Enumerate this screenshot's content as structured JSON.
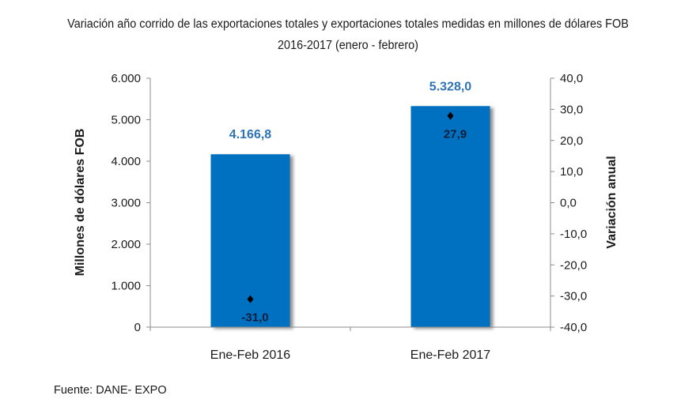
{
  "chart_data": {
    "type": "bar",
    "title": "Variación año corrido de las exportaciones totales y exportaciones totales medidas en millones de dólares FOB",
    "subtitle": "2016-2017 (enero - febrero)",
    "categories": [
      "Ene-Feb 2016",
      "Ene-Feb 2017"
    ],
    "series": [
      {
        "name": "Exportaciones totales (millones de dólares FOB)",
        "type": "bar",
        "axis": "left",
        "values": [
          4166.8,
          5328.0
        ],
        "labels": [
          "4.166,8",
          "5.328,0"
        ],
        "color": "#0070c0"
      },
      {
        "name": "Variación anual",
        "type": "scatter",
        "axis": "right",
        "values": [
          -31.0,
          27.9
        ],
        "labels": [
          "-31,0",
          "27,9"
        ],
        "color": "#000000"
      }
    ],
    "ylabel": "Millones de dólares FOB",
    "y2label": "Variación anual",
    "xlabel": "",
    "ylim": [
      0,
      6000
    ],
    "y2lim": [
      -40,
      40
    ],
    "yticks": [
      0,
      1000,
      2000,
      3000,
      4000,
      5000,
      6000
    ],
    "ytick_labels": [
      "0",
      "1.000",
      "2.000",
      "3.000",
      "4.000",
      "5.000",
      "6.000"
    ],
    "y2ticks": [
      -40,
      -30,
      -20,
      -10,
      0,
      10,
      20,
      30,
      40
    ],
    "y2tick_labels": [
      "-40,0",
      "-30,0",
      "-20,0",
      "-10,0",
      "0,0",
      "10,0",
      "20,0",
      "30,0",
      "40,0"
    ],
    "grid": false,
    "legend": "none"
  },
  "source": "Fuente: DANE- EXPO"
}
